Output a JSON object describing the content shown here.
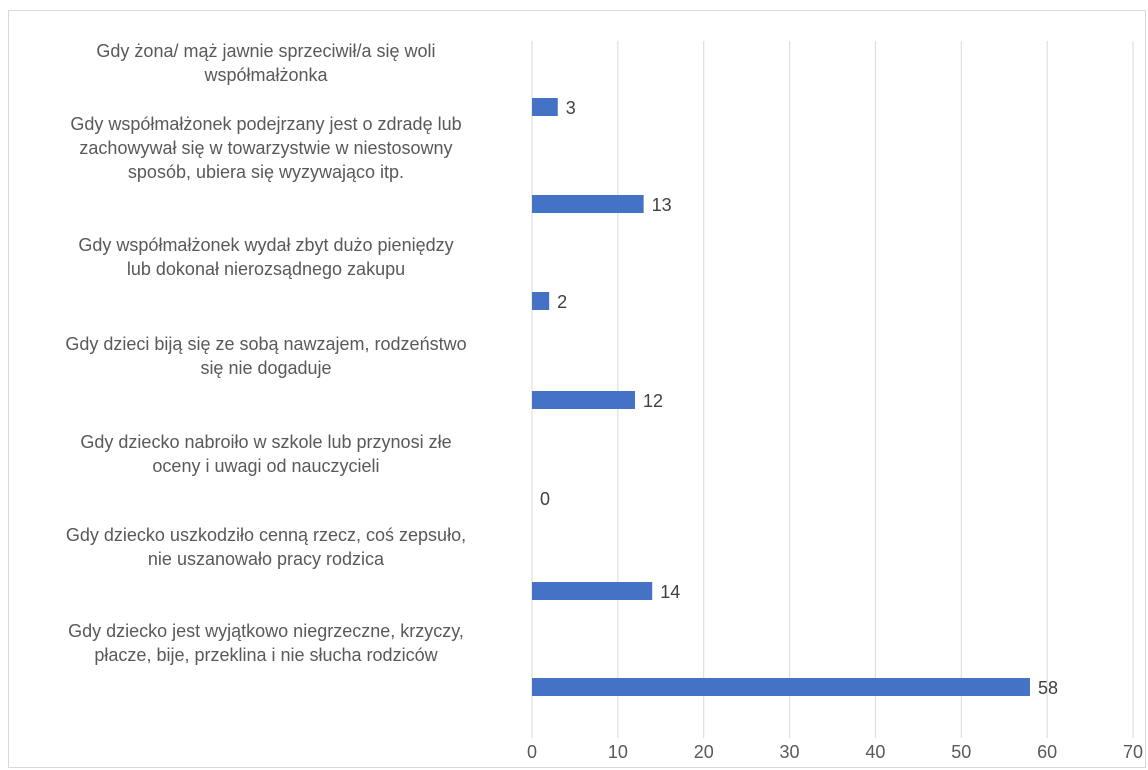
{
  "chart_data": {
    "type": "bar",
    "orientation": "horizontal",
    "categories": [
      [
        "Gdy żona/ mąż jawnie sprzeciwił/a się woli",
        "współmałżonka"
      ],
      [
        "Gdy współmałżonek podejrzany jest o zdradę lub",
        "zachowywał się w towarzystwie w niestosowny",
        "sposób, ubiera się wyzywająco itp."
      ],
      [
        "Gdy współmałżonek wydał zbyt dużo pieniędzy",
        "lub dokonał nierozsądnego zakupu"
      ],
      [
        "Gdy dzieci biją się ze sobą nawzajem, rodzeństwo",
        "się nie dogaduje"
      ],
      [
        "Gdy dziecko nabroiło w szkole lub przynosi złe",
        "oceny i uwagi od nauczycieli"
      ],
      [
        "Gdy dziecko uszkodziło cenną rzecz, coś zepsuło,",
        "nie uszanowało pracy rodzica"
      ],
      [
        "Gdy dziecko jest wyjątkowo niegrzeczne, krzyczy,",
        "płacze, bije, przeklina i nie słucha rodziców"
      ]
    ],
    "values": [
      3,
      13,
      2,
      12,
      0,
      14,
      58
    ],
    "xlim": [
      0,
      70
    ],
    "ticks": [
      0,
      10,
      20,
      30,
      40,
      50,
      60,
      70
    ],
    "title": "",
    "xlabel": "",
    "ylabel": "",
    "grid": "vertical",
    "legend": "none",
    "colors": {
      "bar": "#4472c4",
      "grid": "#d9d9d9",
      "text": "#595959",
      "data_label": "#404040"
    }
  }
}
